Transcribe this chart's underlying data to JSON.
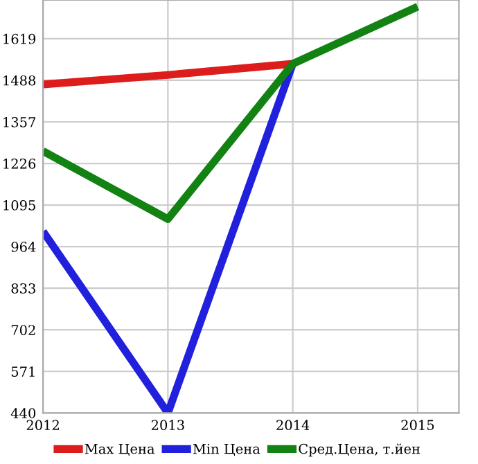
{
  "chart_data": {
    "type": "line",
    "x": [
      2012,
      2013,
      2014,
      2015
    ],
    "series": [
      {
        "name": "Max Цена",
        "color": "#dd1c1c",
        "values": [
          1475,
          1505,
          1540,
          null
        ]
      },
      {
        "name": "Min Цена",
        "color": "#2020dd",
        "values": [
          1012,
          440,
          1540,
          null
        ]
      },
      {
        "name": "Сред.Цена, т.йен",
        "color": "#128212",
        "values": [
          1265,
          1051,
          1540,
          1720
        ]
      }
    ],
    "xlim": [
      2012,
      2015.33
    ],
    "xticks": [
      2012,
      2013,
      2014,
      2015
    ],
    "ylim": [
      440,
      1741
    ],
    "yticks": [
      440,
      571,
      702,
      833,
      964,
      1095,
      1226,
      1357,
      1488,
      1619
    ],
    "grid": true,
    "legend": "bottom",
    "marker": "none",
    "line_style": "solid"
  }
}
